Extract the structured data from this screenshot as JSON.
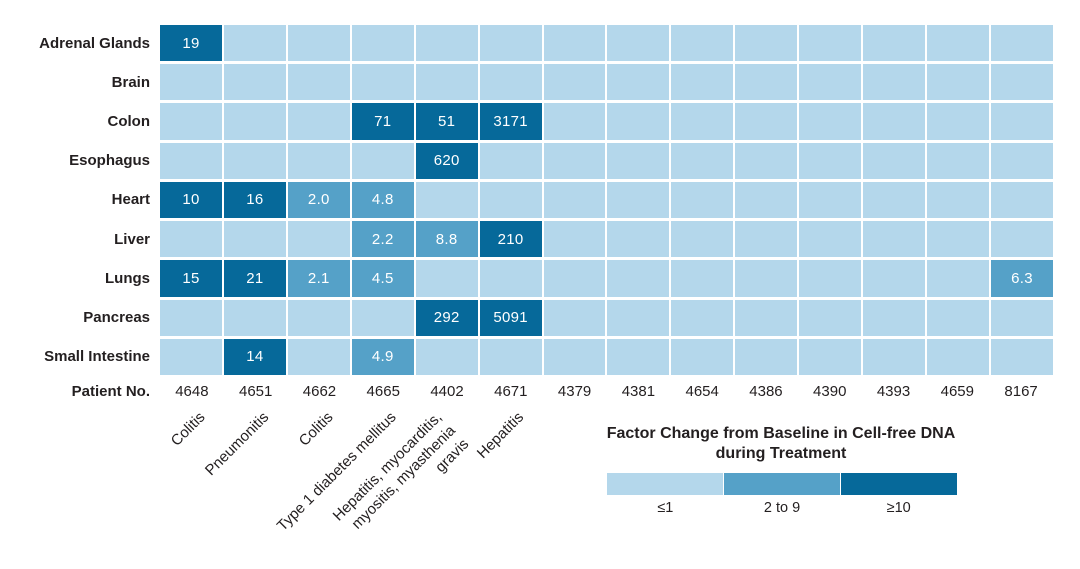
{
  "colors": {
    "low": "#b4d7eb",
    "mid": "#55a1c8",
    "high": "#06699a",
    "text": "#231f20",
    "cell_text": "#ffffff"
  },
  "chart_data": {
    "type": "heatmap",
    "x_axis_label": "Patient No.",
    "columns": [
      "4648",
      "4651",
      "4662",
      "4665",
      "4402",
      "4671",
      "4379",
      "4381",
      "4654",
      "4386",
      "4390",
      "4393",
      "4659",
      "8167"
    ],
    "rows": [
      {
        "organ": "Adrenal Glands",
        "values": [
          "19",
          "",
          "",
          "",
          "",
          "",
          "",
          "",
          "",
          "",
          "",
          "",
          "",
          ""
        ]
      },
      {
        "organ": "Brain",
        "values": [
          "",
          "",
          "",
          "",
          "",
          "",
          "",
          "",
          "",
          "",
          "",
          "",
          "",
          ""
        ]
      },
      {
        "organ": "Colon",
        "values": [
          "",
          "",
          "",
          "71",
          "51",
          "3171",
          "",
          "",
          "",
          "",
          "",
          "",
          "",
          ""
        ]
      },
      {
        "organ": "Esophagus",
        "values": [
          "",
          "",
          "",
          "",
          "620",
          "",
          "",
          "",
          "",
          "",
          "",
          "",
          "",
          ""
        ]
      },
      {
        "organ": "Heart",
        "values": [
          "10",
          "16",
          "2.0",
          "4.8",
          "",
          "",
          "",
          "",
          "",
          "",
          "",
          "",
          "",
          ""
        ]
      },
      {
        "organ": "Liver",
        "values": [
          "",
          "",
          "",
          "2.2",
          "8.8",
          "210",
          "",
          "",
          "",
          "",
          "",
          "",
          "",
          ""
        ]
      },
      {
        "organ": "Lungs",
        "values": [
          "15",
          "21",
          "2.1",
          "4.5",
          "",
          "",
          "",
          "",
          "",
          "",
          "",
          "",
          "",
          "6.3"
        ]
      },
      {
        "organ": "Pancreas",
        "values": [
          "",
          "",
          "",
          "",
          "292",
          "5091",
          "",
          "",
          "",
          "",
          "",
          "",
          "",
          ""
        ]
      },
      {
        "organ": "Small Intestine",
        "values": [
          "",
          "14",
          "",
          "4.9",
          "",
          "",
          "",
          "",
          "",
          "",
          "",
          "",
          "",
          ""
        ]
      }
    ],
    "thresholds": {
      "low_max": 1,
      "high_min": 10
    },
    "condition_labels": [
      {
        "column": "4648",
        "lines": [
          "Colitis"
        ]
      },
      {
        "column": "4651",
        "lines": [
          "Pneumonitis"
        ]
      },
      {
        "column": "4662",
        "lines": [
          "Colitis"
        ]
      },
      {
        "column": "4665",
        "lines": [
          "Type 1 diabetes mellitus"
        ]
      },
      {
        "column": "4402",
        "lines": [
          "Hepatitis, myocarditis,",
          "myositis, myasthenia",
          "gravis"
        ]
      },
      {
        "column": "4671",
        "lines": [
          "Hepatitis"
        ]
      }
    ],
    "legend": {
      "title_line1": "Factor Change from Baseline in Cell-free DNA",
      "title_line2": "during Treatment",
      "bins": [
        {
          "label": "≤1",
          "level": "low",
          "color": "#b4d7eb"
        },
        {
          "label": "2 to 9",
          "level": "mid",
          "color": "#55a1c8"
        },
        {
          "label": "≥10",
          "level": "high",
          "color": "#06699a"
        }
      ]
    }
  }
}
